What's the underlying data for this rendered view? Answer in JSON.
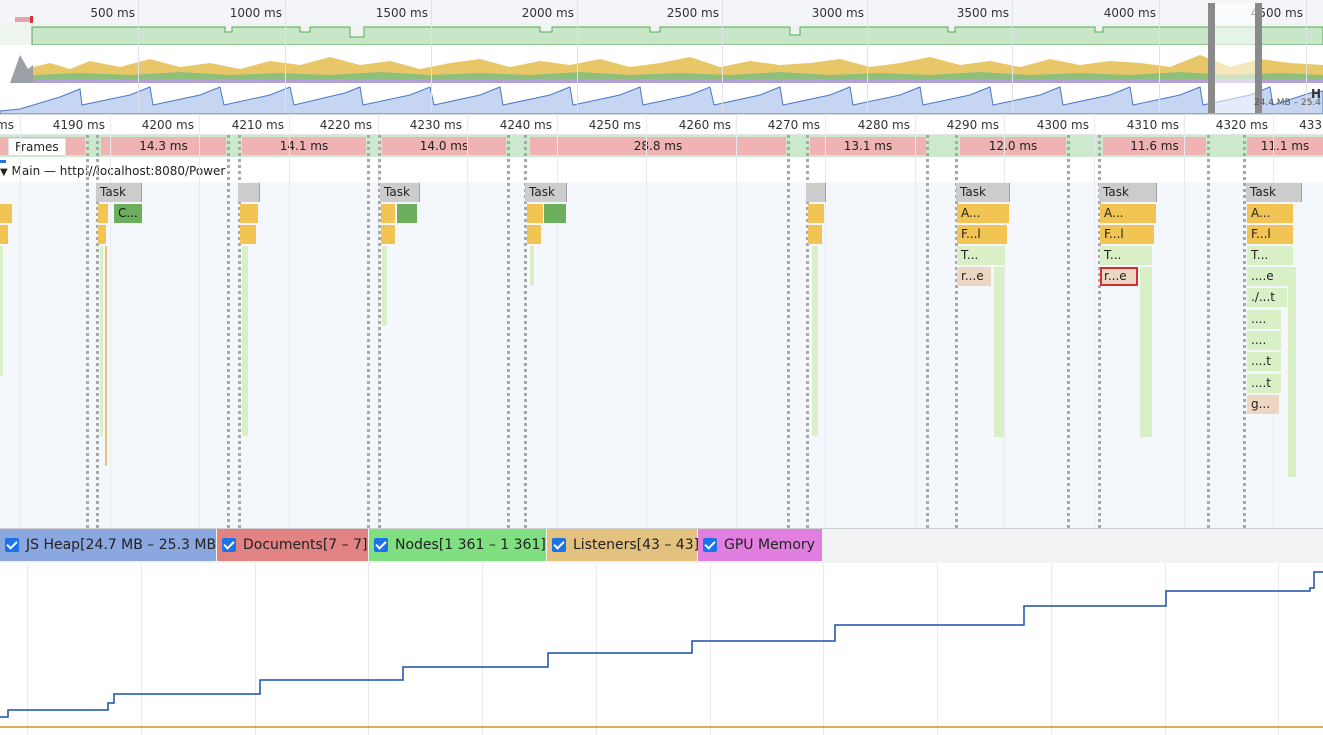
{
  "overview": {
    "ticks": [
      "500 ms",
      "1000 ms",
      "1500 ms",
      "2000 ms",
      "2500 ms",
      "3000 ms",
      "3500 ms",
      "4000 ms",
      "4500 ms"
    ],
    "heap_label": "H",
    "heap_range": "24.4 MB – 25.4"
  },
  "detail": {
    "ticks": [
      "ms",
      "4190 ms",
      "4200 ms",
      "4210 ms",
      "4220 ms",
      "4230 ms",
      "4240 ms",
      "4250 ms",
      "4260 ms",
      "4270 ms",
      "4280 ms",
      "4290 ms",
      "4300 ms",
      "4310 ms",
      "4320 ms",
      "433"
    ]
  },
  "frames": {
    "title": "Frames",
    "durations": [
      "14.3 ms",
      "14.1 ms",
      "14.0 ms",
      "28.8 ms",
      "13.1 ms",
      "12.0 ms",
      "11.6 ms",
      "11.1 ms"
    ]
  },
  "main": {
    "title": "Main — http://localhost:8080/Power",
    "task_label": "Task",
    "events": {
      "c": "C...",
      "a1": "A...",
      "f1": "F...l",
      "t1": "T...",
      "r1": "r...e",
      "a2": "A...",
      "f2": "F...l",
      "t2": "T...",
      "r2": "r...e",
      "a3": "A...",
      "f3": "F...l",
      "t3": "T...",
      "e3": "....e",
      "p3": "./...t",
      "d1": "....",
      "d2": "....",
      "d3": "....t",
      "d4": "....t",
      "g3": "g..."
    }
  },
  "counters_legend": [
    {
      "label": "JS Heap[24.7 MB – 25.3 MB]",
      "color": "#8ba7e0"
    },
    {
      "label": "Documents[7 – 7]",
      "color": "#e28383"
    },
    {
      "label": "Nodes[1 361 – 1 361]",
      "color": "#80df80"
    },
    {
      "label": "Listeners[43 – 43]",
      "color": "#e3c17f"
    },
    {
      "label": "GPU Memory",
      "color": "#e17fe1"
    }
  ],
  "colors": {
    "heap_line": "#1a4fa8",
    "listeners_line": "#c8951a",
    "frame_long": "#efb3b3",
    "frame_idle": "#cde9cd",
    "selected_outline": "#d32f2f"
  }
}
